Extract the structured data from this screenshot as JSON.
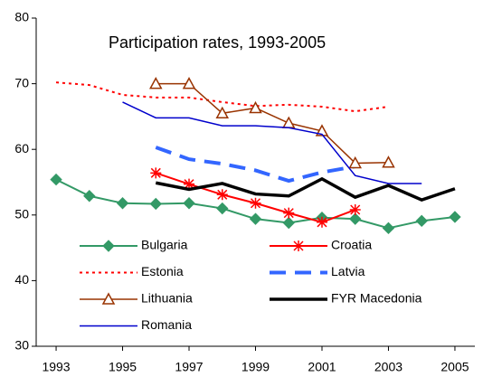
{
  "chart_data": {
    "type": "line",
    "title": "Participation rates, 1993-2005",
    "x": [
      1993,
      1994,
      1995,
      1996,
      1997,
      1998,
      1999,
      2000,
      2001,
      2002,
      2003,
      2004,
      2005
    ],
    "series": [
      {
        "name": "Bulgaria",
        "color": "#339966",
        "width": 2,
        "dash": "solid",
        "marker": "diamond",
        "values": [
          55.4,
          52.9,
          51.8,
          51.7,
          51.8,
          51.0,
          49.4,
          48.8,
          49.6,
          49.4,
          48.0,
          49.1,
          49.7
        ]
      },
      {
        "name": "Croatia",
        "color": "#ff0000",
        "width": 2,
        "dash": "solid",
        "marker": "asterisk",
        "values": [
          null,
          null,
          null,
          56.4,
          54.7,
          53.1,
          51.8,
          50.3,
          48.9,
          50.8,
          null,
          null,
          null
        ]
      },
      {
        "name": "Estonia",
        "color": "#ff0000",
        "width": 2,
        "dash": "dotted",
        "marker": "none",
        "values": [
          70.2,
          69.8,
          68.3,
          67.9,
          67.9,
          67.2,
          66.6,
          66.8,
          66.5,
          65.8,
          66.5,
          null,
          null
        ]
      },
      {
        "name": "Latvia",
        "color": "#3366ff",
        "width": 4,
        "dash": "dashed",
        "marker": "none",
        "values": [
          null,
          null,
          null,
          60.3,
          58.5,
          57.8,
          56.8,
          55.2,
          56.5,
          57.4,
          null,
          null,
          null
        ]
      },
      {
        "name": "Lithuania",
        "color": "#993300",
        "width": 1.5,
        "dash": "solid",
        "marker": "triangle",
        "values": [
          null,
          null,
          null,
          70.0,
          70.0,
          65.5,
          66.3,
          64.0,
          62.8,
          57.9,
          58.0,
          null,
          null
        ]
      },
      {
        "name": "FYR Macedonia",
        "color": "#000000",
        "width": 3.5,
        "dash": "solid",
        "marker": "none",
        "values": [
          null,
          null,
          null,
          54.9,
          53.9,
          54.8,
          53.2,
          52.9,
          55.5,
          52.7,
          54.5,
          52.3,
          54.0
        ]
      },
      {
        "name": "Romania",
        "color": "#0000cc",
        "width": 1.5,
        "dash": "solid",
        "marker": "none",
        "values": [
          null,
          null,
          67.2,
          64.8,
          64.8,
          63.6,
          63.6,
          63.3,
          62.3,
          56.0,
          54.8,
          54.8,
          null
        ]
      }
    ],
    "xlim": [
      1992.4,
      2005.6
    ],
    "xticks": [
      1993,
      1995,
      1997,
      1999,
      2001,
      2003,
      2005
    ],
    "ylim": [
      30,
      80
    ],
    "yticks": [
      30,
      40,
      50,
      60,
      70,
      80
    ],
    "grid": false,
    "legend": "bottom-left"
  }
}
